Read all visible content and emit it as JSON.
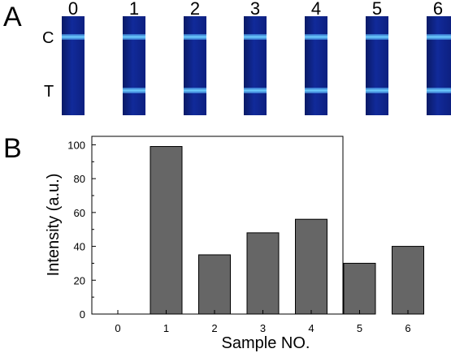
{
  "panel_a": {
    "letter": "A",
    "line_labels": {
      "control": "C",
      "test": "T"
    },
    "strips": [
      {
        "label": "0",
        "test_line": false
      },
      {
        "label": "1",
        "test_line": true
      },
      {
        "label": "2",
        "test_line": true
      },
      {
        "label": "3",
        "test_line": true
      },
      {
        "label": "4",
        "test_line": true
      },
      {
        "label": "5",
        "test_line": true
      },
      {
        "label": "6",
        "test_line": true
      }
    ],
    "colors": {
      "strip": "#112a9a",
      "band": "#6fd0ff"
    }
  },
  "panel_b": {
    "letter": "B"
  },
  "chart_data": {
    "type": "bar",
    "categories": [
      "0",
      "1",
      "2",
      "3",
      "4",
      "5",
      "6"
    ],
    "values": [
      0,
      99,
      35,
      48,
      56,
      30,
      40
    ],
    "xlabel": "Sample NO.",
    "ylabel": "Intensity (a.u.)",
    "ylim": [
      0,
      105
    ],
    "yticks": [
      0,
      20,
      40,
      60,
      80,
      100
    ],
    "grid": false,
    "bar_color": "#666666"
  }
}
